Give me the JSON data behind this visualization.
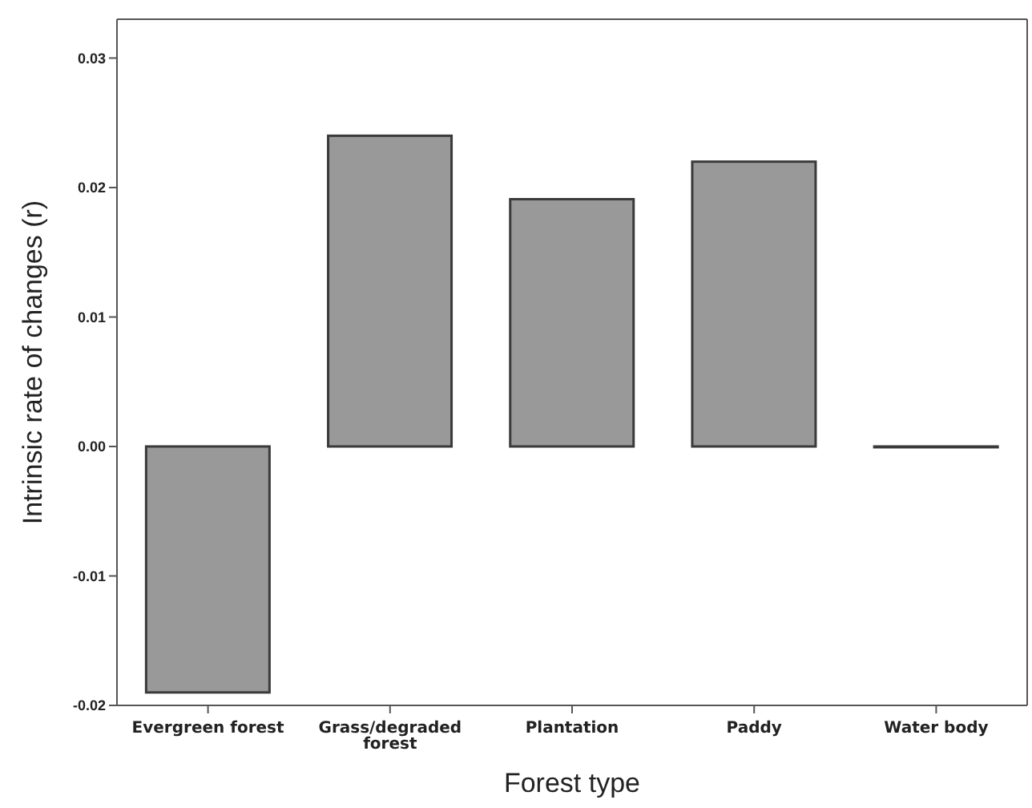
{
  "chart_data": {
    "type": "bar",
    "xlabel": "Forest type",
    "ylabel": "Intrinsic rate of changes (r)",
    "categories": [
      "Evergreen forest",
      "Grass/degraded forest",
      "Plantation",
      "Paddy",
      "Water body"
    ],
    "values": [
      -0.019,
      0.024,
      0.0191,
      0.022,
      0
    ],
    "color": "#999999",
    "ylim": [
      -0.02,
      0.033
    ],
    "yticks": [
      {
        "value": -0.02,
        "label": "-0.02"
      },
      {
        "value": -0.01,
        "label": "-0.01"
      },
      {
        "value": 0,
        "label": "0.00"
      },
      {
        "value": 0.01,
        "label": "0.01"
      },
      {
        "value": 0.02,
        "label": "0.02"
      },
      {
        "value": 0.03,
        "label": "0.03"
      }
    ],
    "grid": false,
    "legend": false
  }
}
